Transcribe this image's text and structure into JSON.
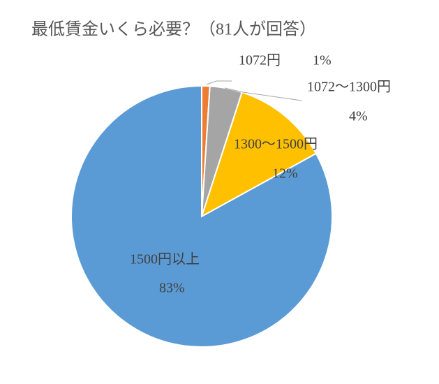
{
  "chart_data": {
    "type": "pie",
    "title": "最低賃金いくら必要？（81人が回答）",
    "categories": [
      "1072円",
      "1072～1300円",
      "1300～1500円",
      "1500円以上"
    ],
    "values": [
      1,
      4,
      12,
      83
    ],
    "value_labels": [
      "1%",
      "4%",
      "12%",
      "83%"
    ],
    "colors": [
      "#ed7d31",
      "#a5a5a5",
      "#ffc000",
      "#5b9bd5"
    ]
  }
}
